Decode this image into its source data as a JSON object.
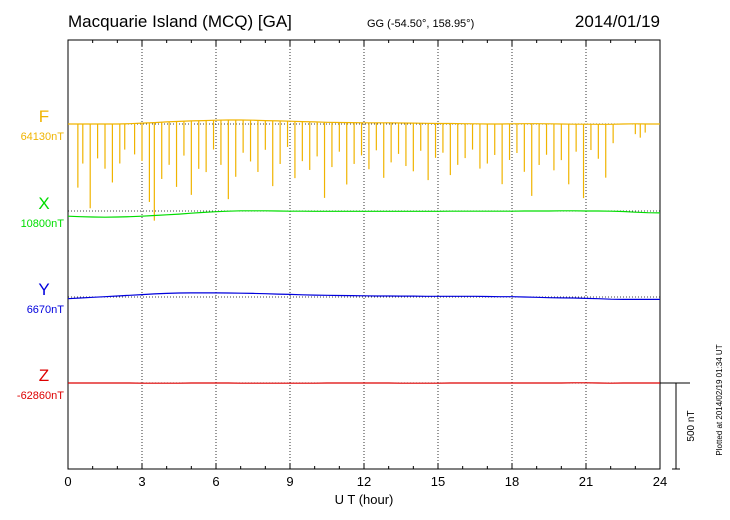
{
  "header": {
    "station": "Macquarie Island (MCQ)  [GA]",
    "coords": "GG (-54.50°, 158.95°)",
    "date": "2014/01/19"
  },
  "footer": {
    "plotted": "Plotted at 2014/02/19 01:34 UT",
    "scale_label": "500 nT"
  },
  "chart_data": {
    "type": "line",
    "title": "Macquarie Island (MCQ)  [GA]",
    "xlabel": "U T (hour)",
    "ylabel": "",
    "xlim": [
      0,
      24
    ],
    "x_ticks": [
      "0",
      "3",
      "6",
      "9",
      "12",
      "15",
      "18",
      "21",
      "24"
    ],
    "x_tick_values": [
      0,
      3,
      6,
      9,
      12,
      15,
      18,
      21,
      24
    ],
    "grid": "vertical dotted at 3-hour intervals",
    "scale_bar_nT": 500,
    "series": [
      {
        "name": "F",
        "baseline_label": "64130nT",
        "baseline_nT": 64130,
        "color": "#f0b400",
        "x": [
          0,
          0.5,
          1,
          1.5,
          2,
          2.5,
          3,
          3.5,
          4,
          4.5,
          5,
          5.5,
          6,
          6.5,
          7,
          7.5,
          8,
          8.5,
          9,
          9.5,
          10,
          10.5,
          11,
          11.5,
          12,
          12.5,
          13,
          13.5,
          14,
          14.5,
          15,
          15.5,
          16,
          16.5,
          17,
          17.5,
          18,
          18.5,
          19,
          19.5,
          20,
          20.5,
          21,
          21.5,
          22,
          22.5,
          23,
          23.5,
          24
        ],
        "values": [
          64130,
          64130,
          64130,
          64130,
          64130,
          64132,
          64135,
          64138,
          64142,
          64145,
          64148,
          64150,
          64152,
          64153,
          64153,
          64152,
          64150,
          64148,
          64146,
          64144,
          64142,
          64140,
          64139,
          64138,
          64137,
          64137,
          64137,
          64136,
          64135,
          64134,
          64133,
          64133,
          64132,
          64131,
          64130,
          64130,
          64131,
          64132,
          64132,
          64131,
          64130,
          64129,
          64129,
          64128,
          64128,
          64130,
          64131,
          64130,
          64130
        ],
        "dropouts": [
          {
            "t": 0.4,
            "depth_nT": 370
          },
          {
            "t": 0.6,
            "depth_nT": 230
          },
          {
            "t": 0.9,
            "depth_nT": 490
          },
          {
            "t": 1.2,
            "depth_nT": 200
          },
          {
            "t": 1.5,
            "depth_nT": 260
          },
          {
            "t": 1.8,
            "depth_nT": 340
          },
          {
            "t": 2.1,
            "depth_nT": 230
          },
          {
            "t": 2.3,
            "depth_nT": 150
          },
          {
            "t": 2.7,
            "depth_nT": 180
          },
          {
            "t": 3.0,
            "depth_nT": 220
          },
          {
            "t": 3.3,
            "depth_nT": 460
          },
          {
            "t": 3.5,
            "depth_nT": 570
          },
          {
            "t": 3.8,
            "depth_nT": 330
          },
          {
            "t": 4.1,
            "depth_nT": 250
          },
          {
            "t": 4.4,
            "depth_nT": 380
          },
          {
            "t": 4.7,
            "depth_nT": 200
          },
          {
            "t": 5.0,
            "depth_nT": 430
          },
          {
            "t": 5.3,
            "depth_nT": 280
          },
          {
            "t": 5.6,
            "depth_nT": 300
          },
          {
            "t": 5.9,
            "depth_nT": 170
          },
          {
            "t": 6.2,
            "depth_nT": 260
          },
          {
            "t": 6.5,
            "depth_nT": 460
          },
          {
            "t": 6.8,
            "depth_nT": 330
          },
          {
            "t": 7.1,
            "depth_nT": 190
          },
          {
            "t": 7.4,
            "depth_nT": 240
          },
          {
            "t": 7.7,
            "depth_nT": 300
          },
          {
            "t": 8.0,
            "depth_nT": 170
          },
          {
            "t": 8.3,
            "depth_nT": 380
          },
          {
            "t": 8.6,
            "depth_nT": 250
          },
          {
            "t": 8.9,
            "depth_nT": 150
          },
          {
            "t": 9.2,
            "depth_nT": 330
          },
          {
            "t": 9.5,
            "depth_nT": 230
          },
          {
            "t": 9.8,
            "depth_nT": 280
          },
          {
            "t": 10.1,
            "depth_nT": 200
          },
          {
            "t": 10.4,
            "depth_nT": 440
          },
          {
            "t": 10.7,
            "depth_nT": 260
          },
          {
            "t": 11.0,
            "depth_nT": 170
          },
          {
            "t": 11.3,
            "depth_nT": 360
          },
          {
            "t": 11.6,
            "depth_nT": 240
          },
          {
            "t": 11.9,
            "depth_nT": 190
          },
          {
            "t": 12.2,
            "depth_nT": 270
          },
          {
            "t": 12.5,
            "depth_nT": 160
          },
          {
            "t": 12.8,
            "depth_nT": 320
          },
          {
            "t": 13.1,
            "depth_nT": 230
          },
          {
            "t": 13.4,
            "depth_nT": 180
          },
          {
            "t": 13.7,
            "depth_nT": 250
          },
          {
            "t": 14.0,
            "depth_nT": 280
          },
          {
            "t": 14.3,
            "depth_nT": 160
          },
          {
            "t": 14.6,
            "depth_nT": 330
          },
          {
            "t": 14.9,
            "depth_nT": 200
          },
          {
            "t": 15.2,
            "depth_nT": 170
          },
          {
            "t": 15.5,
            "depth_nT": 300
          },
          {
            "t": 15.8,
            "depth_nT": 240
          },
          {
            "t": 16.1,
            "depth_nT": 200
          },
          {
            "t": 16.4,
            "depth_nT": 150
          },
          {
            "t": 16.7,
            "depth_nT": 260
          },
          {
            "t": 17.0,
            "depth_nT": 230
          },
          {
            "t": 17.3,
            "depth_nT": 180
          },
          {
            "t": 17.6,
            "depth_nT": 350
          },
          {
            "t": 17.9,
            "depth_nT": 210
          },
          {
            "t": 18.2,
            "depth_nT": 170
          },
          {
            "t": 18.5,
            "depth_nT": 280
          },
          {
            "t": 18.8,
            "depth_nT": 420
          },
          {
            "t": 19.1,
            "depth_nT": 240
          },
          {
            "t": 19.4,
            "depth_nT": 180
          },
          {
            "t": 19.7,
            "depth_nT": 270
          },
          {
            "t": 20.0,
            "depth_nT": 210
          },
          {
            "t": 20.3,
            "depth_nT": 350
          },
          {
            "t": 20.6,
            "depth_nT": 160
          },
          {
            "t": 20.9,
            "depth_nT": 430
          },
          {
            "t": 21.2,
            "depth_nT": 150
          },
          {
            "t": 21.5,
            "depth_nT": 200
          },
          {
            "t": 21.8,
            "depth_nT": 310
          },
          {
            "t": 22.1,
            "depth_nT": 110
          },
          {
            "t": 23.0,
            "depth_nT": 60
          },
          {
            "t": 23.2,
            "depth_nT": 80
          },
          {
            "t": 23.4,
            "depth_nT": 50
          }
        ]
      },
      {
        "name": "X",
        "baseline_label": "10800nT",
        "baseline_nT": 10800,
        "color": "#00dd00",
        "x": [
          0,
          0.5,
          1,
          1.5,
          2,
          2.5,
          3,
          3.5,
          4,
          4.5,
          5,
          5.5,
          6,
          6.5,
          7,
          7.5,
          8,
          8.5,
          9,
          9.5,
          10,
          10.5,
          11,
          11.5,
          12,
          12.5,
          13,
          13.5,
          14,
          14.5,
          15,
          15.5,
          16,
          16.5,
          17,
          17.5,
          18,
          18.5,
          19,
          19.5,
          20,
          20.5,
          21,
          21.5,
          22,
          22.5,
          23,
          23.5,
          24
        ],
        "values": [
          10770,
          10767,
          10765,
          10764,
          10765,
          10767,
          10770,
          10774,
          10778,
          10782,
          10787,
          10792,
          10796,
          10799,
          10801,
          10801,
          10801,
          10800,
          10799,
          10799,
          10798,
          10798,
          10798,
          10798,
          10798,
          10798,
          10798,
          10798,
          10798,
          10798,
          10798,
          10799,
          10799,
          10799,
          10799,
          10799,
          10799,
          10800,
          10800,
          10800,
          10801,
          10801,
          10800,
          10800,
          10799,
          10797,
          10793,
          10790,
          10789
        ]
      },
      {
        "name": "Y",
        "baseline_label": "6670nT",
        "baseline_nT": 6670,
        "color": "#0000dd",
        "x": [
          0,
          0.5,
          1,
          1.5,
          2,
          2.5,
          3,
          3.5,
          4,
          4.5,
          5,
          5.5,
          6,
          6.5,
          7,
          7.5,
          8,
          8.5,
          9,
          9.5,
          10,
          10.5,
          11,
          11.5,
          12,
          12.5,
          13,
          13.5,
          14,
          14.5,
          15,
          15.5,
          16,
          16.5,
          17,
          17.5,
          18,
          18.5,
          19,
          19.5,
          20,
          20.5,
          21,
          21.5,
          22,
          22.5,
          23,
          23.5,
          24
        ],
        "values": [
          6660,
          6664,
          6668,
          6672,
          6676,
          6680,
          6684,
          6688,
          6691,
          6693,
          6694,
          6694,
          6694,
          6693,
          6692,
          6691,
          6689,
          6687,
          6685,
          6683,
          6681,
          6680,
          6679,
          6678,
          6677,
          6676,
          6676,
          6675,
          6675,
          6674,
          6674,
          6674,
          6674,
          6674,
          6673,
          6672,
          6672,
          6670,
          6668,
          6666,
          6665,
          6664,
          6662,
          6660,
          6657,
          6656,
          6656,
          6656,
          6656
        ]
      },
      {
        "name": "Z",
        "baseline_label": "-62860nT",
        "baseline_nT": -62860,
        "color": "#dd0000",
        "x": [
          0,
          0.5,
          1,
          1.5,
          2,
          2.5,
          3,
          3.5,
          4,
          4.5,
          5,
          5.5,
          6,
          6.5,
          7,
          7.5,
          8,
          8.5,
          9,
          9.5,
          10,
          10.5,
          11,
          11.5,
          12,
          12.5,
          13,
          13.5,
          14,
          14.5,
          15,
          15.5,
          16,
          16.5,
          17,
          17.5,
          18,
          18.5,
          19,
          19.5,
          20,
          20.5,
          21,
          21.5,
          22,
          22.5,
          23,
          23.5,
          24
        ],
        "values": [
          -62860,
          -62860,
          -62860,
          -62860,
          -62860,
          -62860,
          -62861,
          -62861,
          -62861,
          -62861,
          -62860,
          -62860,
          -62860,
          -62860,
          -62861,
          -62861,
          -62861,
          -62861,
          -62861,
          -62861,
          -62861,
          -62860,
          -62860,
          -62860,
          -62860,
          -62860,
          -62860,
          -62861,
          -62861,
          -62861,
          -62861,
          -62860,
          -62860,
          -62860,
          -62860,
          -62860,
          -62860,
          -62860,
          -62860,
          -62860,
          -62860,
          -62859,
          -62859,
          -62860,
          -62861,
          -62860,
          -62860,
          -62860,
          -62860
        ]
      }
    ]
  }
}
